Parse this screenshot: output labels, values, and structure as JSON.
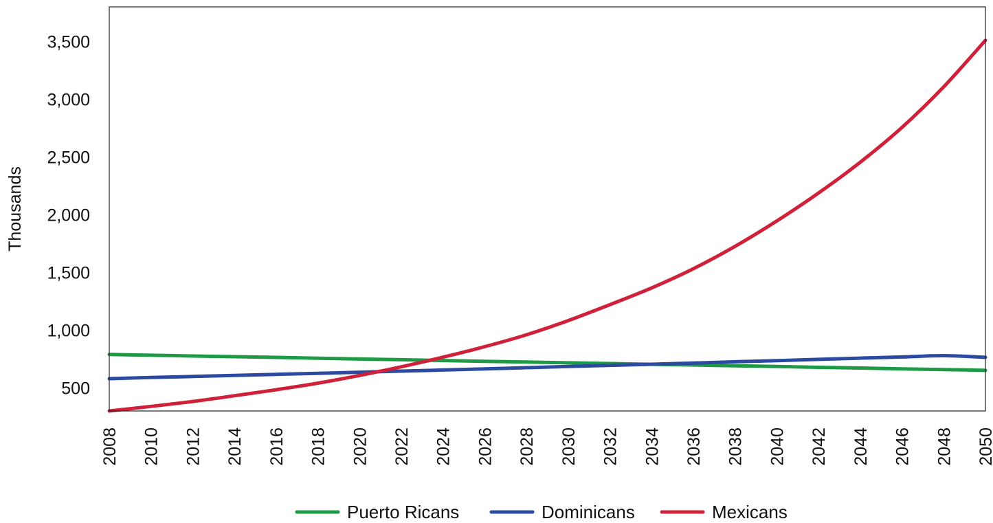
{
  "chart_data": {
    "type": "line",
    "title": "",
    "xlabel": "",
    "ylabel": "Thousands",
    "x": [
      2008,
      2010,
      2012,
      2014,
      2016,
      2018,
      2020,
      2022,
      2024,
      2026,
      2028,
      2030,
      2032,
      2034,
      2036,
      2038,
      2040,
      2042,
      2044,
      2046,
      2048,
      2050
    ],
    "x_tick_labels": [
      "2008",
      "2010",
      "2012",
      "2014",
      "2016",
      "2018",
      "2020",
      "2022",
      "2024",
      "2026",
      "2028",
      "2030",
      "2032",
      "2034",
      "2036",
      "2038",
      "2040",
      "2042",
      "2044",
      "2046",
      "2048",
      "2050"
    ],
    "y_ticks": [
      500,
      1000,
      1500,
      2000,
      2500,
      3000,
      3500
    ],
    "y_tick_labels": [
      "500",
      "1,000",
      "1,500",
      "2,000",
      "2,500",
      "3,000",
      "3,500"
    ],
    "xlim": [
      2008,
      2050
    ],
    "ylim": [
      300,
      3800
    ],
    "grid": false,
    "legend_position": "bottom",
    "series": [
      {
        "name": "Puerto Ricans",
        "color": "#1e9a46",
        "values": [
          790,
          783,
          776,
          770,
          764,
          757,
          750,
          744,
          737,
          730,
          724,
          717,
          711,
          704,
          698,
          691,
          685,
          678,
          672,
          665,
          659,
          652
        ]
      },
      {
        "name": "Dominicans",
        "color": "#2c4aa0",
        "values": [
          580,
          590,
          599,
          608,
          617,
          626,
          636,
          645,
          655,
          665,
          675,
          685,
          695,
          705,
          715,
          726,
          736,
          747,
          758,
          768,
          779,
          765
        ]
      },
      {
        "name": "Mexicans",
        "color": "#d0213a",
        "values": [
          300,
          340,
          382,
          432,
          484,
          541,
          608,
          683,
          766,
          857,
          960,
          1083,
          1221,
          1366,
          1532,
          1726,
          1946,
          2188,
          2455,
          2756,
          3108,
          3510
        ]
      }
    ]
  }
}
